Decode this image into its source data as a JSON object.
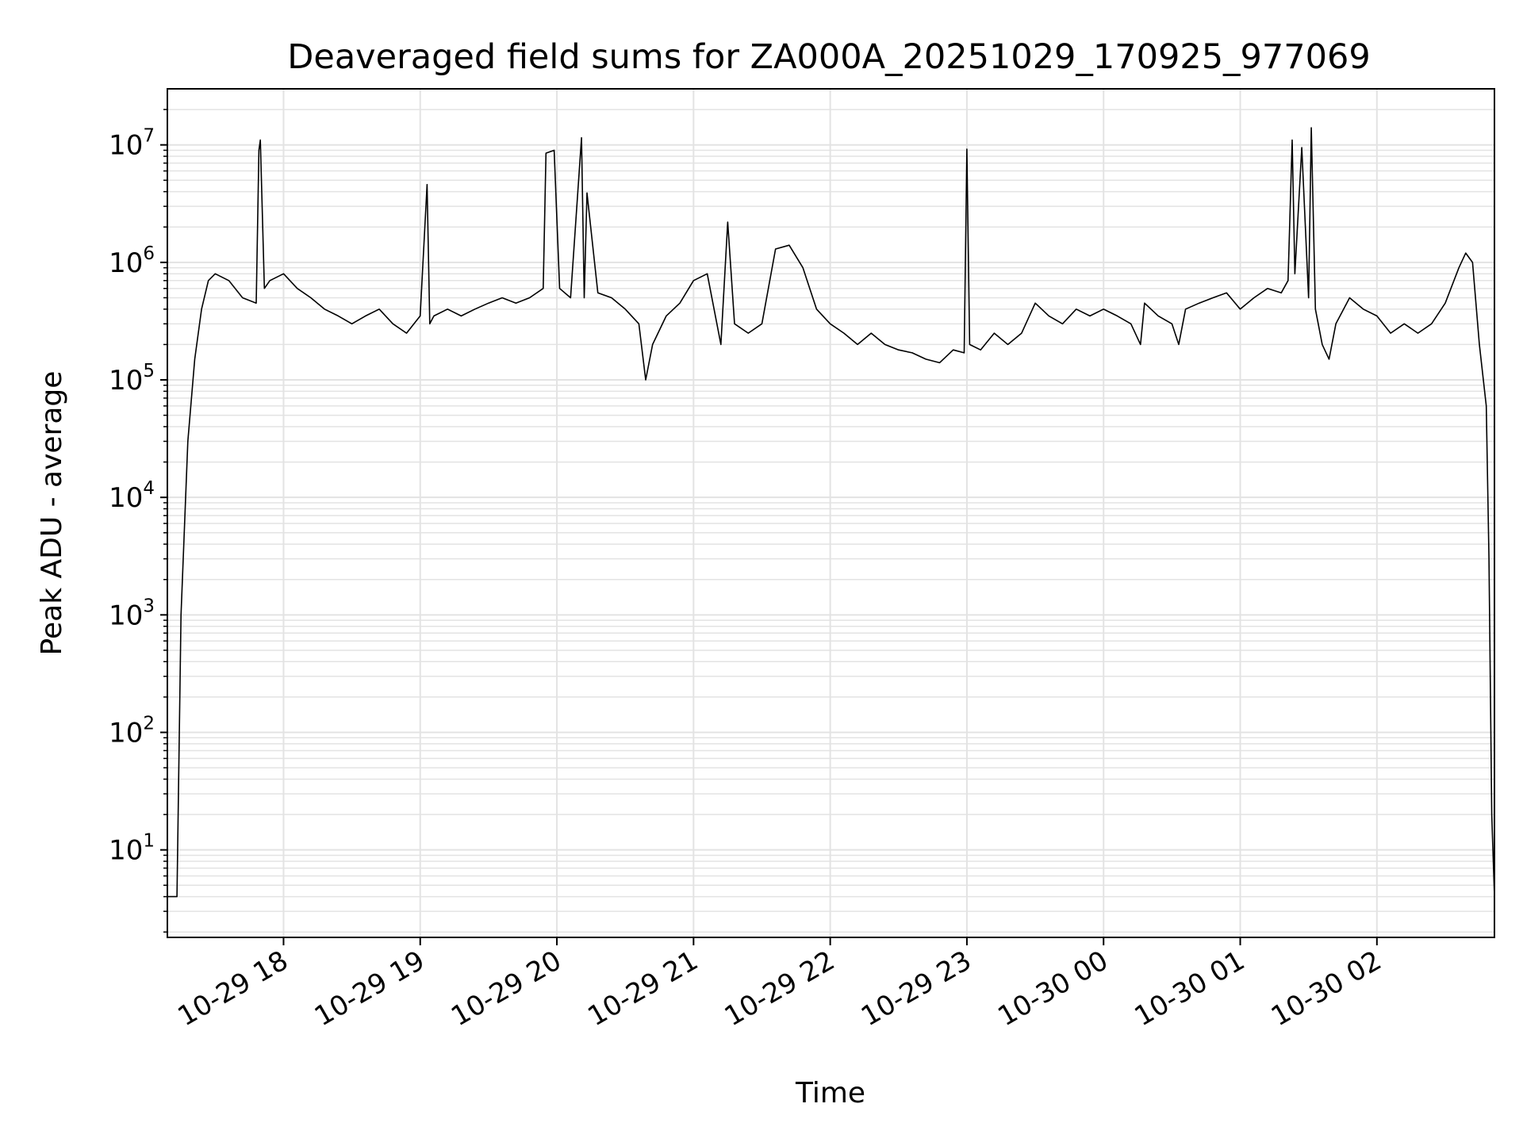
{
  "chart_data": {
    "type": "line",
    "title": "Deaveraged field sums for ZA000A_20251029_170925_977069",
    "xlabel": "Time",
    "ylabel": "Peak ADU - average",
    "yscale": "log",
    "ylim": [
      1.8,
      30000000
    ],
    "xlim_hours": [
      17.15,
      26.86
    ],
    "grid": true,
    "line_color": "#000000",
    "x_ticks": [
      {
        "hour": 18,
        "label": "10-29 18"
      },
      {
        "hour": 19,
        "label": "10-29 19"
      },
      {
        "hour": 20,
        "label": "10-29 20"
      },
      {
        "hour": 21,
        "label": "10-29 21"
      },
      {
        "hour": 22,
        "label": "10-29 22"
      },
      {
        "hour": 23,
        "label": "10-29 23"
      },
      {
        "hour": 24,
        "label": "10-30 00"
      },
      {
        "hour": 25,
        "label": "10-30 01"
      },
      {
        "hour": 26,
        "label": "10-30 02"
      }
    ],
    "y_ticks": [
      {
        "value": 10,
        "base": "10",
        "exp": "1"
      },
      {
        "value": 100,
        "base": "10",
        "exp": "2"
      },
      {
        "value": 1000,
        "base": "10",
        "exp": "3"
      },
      {
        "value": 10000,
        "base": "10",
        "exp": "4"
      },
      {
        "value": 100000,
        "base": "10",
        "exp": "5"
      },
      {
        "value": 1000000,
        "base": "10",
        "exp": "6"
      },
      {
        "value": 10000000,
        "base": "10",
        "exp": "7"
      }
    ],
    "series": [
      {
        "name": "Peak ADU - average",
        "hour": [
          17.15,
          17.2,
          17.22,
          17.25,
          17.3,
          17.35,
          17.4,
          17.45,
          17.5,
          17.6,
          17.7,
          17.8,
          17.82,
          17.83,
          17.86,
          17.9,
          18.0,
          18.1,
          18.2,
          18.3,
          18.4,
          18.5,
          18.6,
          18.7,
          18.8,
          18.9,
          19.0,
          19.05,
          19.07,
          19.1,
          19.2,
          19.3,
          19.4,
          19.5,
          19.6,
          19.7,
          19.8,
          19.9,
          19.92,
          19.98,
          20.02,
          20.1,
          20.18,
          20.2,
          20.22,
          20.3,
          20.4,
          20.5,
          20.6,
          20.65,
          20.7,
          20.8,
          20.9,
          21.0,
          21.1,
          21.2,
          21.25,
          21.3,
          21.4,
          21.5,
          21.6,
          21.7,
          21.8,
          21.9,
          22.0,
          22.1,
          22.2,
          22.3,
          22.4,
          22.5,
          22.6,
          22.7,
          22.8,
          22.9,
          22.98,
          23.0,
          23.02,
          23.1,
          23.2,
          23.3,
          23.4,
          23.5,
          23.6,
          23.7,
          23.8,
          23.9,
          24.0,
          24.1,
          24.2,
          24.27,
          24.3,
          24.4,
          24.5,
          24.55,
          24.6,
          24.7,
          24.8,
          24.9,
          25.0,
          25.1,
          25.2,
          25.3,
          25.35,
          25.38,
          25.4,
          25.45,
          25.5,
          25.52,
          25.55,
          25.6,
          25.65,
          25.7,
          25.8,
          25.9,
          26.0,
          26.1,
          26.2,
          26.3,
          26.4,
          26.5,
          26.6,
          26.65,
          26.7,
          26.75,
          26.8,
          26.82,
          26.84,
          26.86
        ],
        "values": [
          4,
          4,
          4,
          1000,
          30000,
          150000,
          400000,
          700000,
          800000,
          700000,
          500000,
          450000,
          9000000,
          11000000,
          600000,
          700000,
          800000,
          600000,
          500000,
          400000,
          350000,
          300000,
          350000,
          400000,
          300000,
          250000,
          350000,
          4600000,
          300000,
          350000,
          400000,
          350000,
          400000,
          450000,
          500000,
          450000,
          500000,
          600000,
          8500000,
          9000000,
          600000,
          500000,
          11500000,
          500000,
          3900000,
          550000,
          500000,
          400000,
          300000,
          100000,
          200000,
          350000,
          450000,
          700000,
          800000,
          200000,
          2200000,
          300000,
          250000,
          300000,
          1300000,
          1400000,
          900000,
          400000,
          300000,
          250000,
          200000,
          250000,
          200000,
          180000,
          170000,
          150000,
          140000,
          180000,
          170000,
          9200000,
          200000,
          180000,
          250000,
          200000,
          250000,
          450000,
          350000,
          300000,
          400000,
          350000,
          400000,
          350000,
          300000,
          200000,
          450000,
          350000,
          300000,
          200000,
          400000,
          450000,
          500000,
          550000,
          400000,
          500000,
          600000,
          550000,
          700000,
          11000000,
          800000,
          9500000,
          500000,
          14000000,
          400000,
          200000,
          150000,
          300000,
          500000,
          400000,
          350000,
          250000,
          300000,
          250000,
          300000,
          450000,
          900000,
          1200000,
          1000000,
          200000,
          60000,
          3000,
          20,
          4
        ]
      }
    ]
  }
}
